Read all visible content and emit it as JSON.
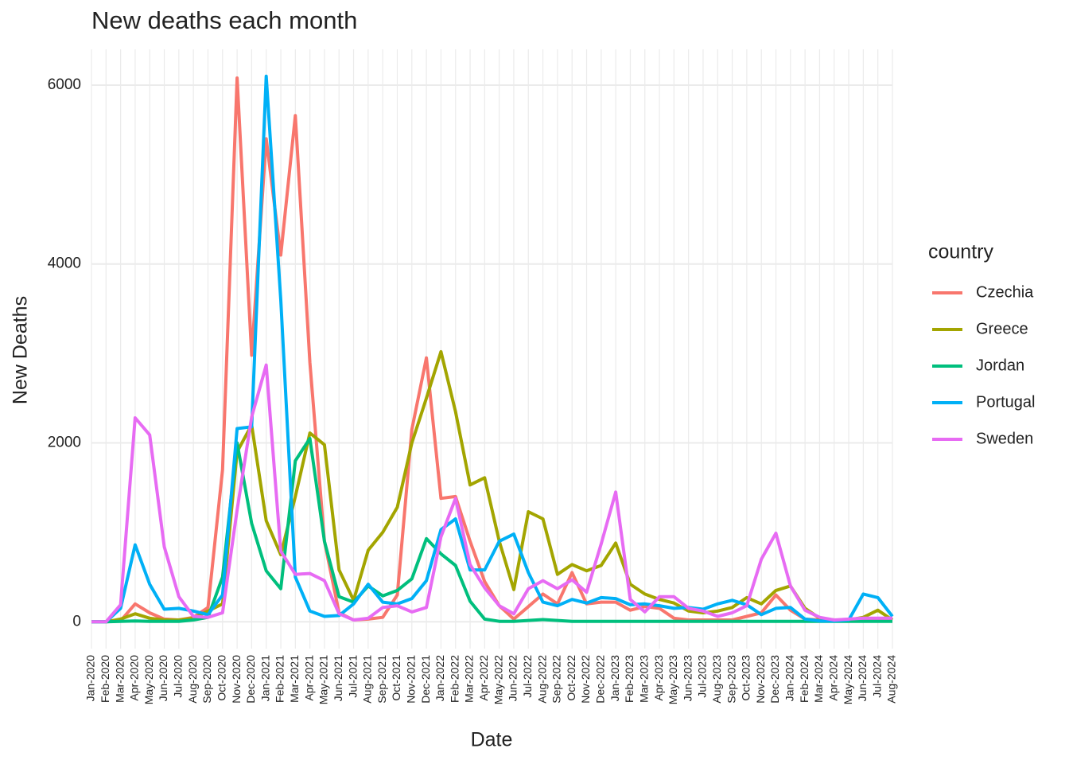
{
  "chart_data": {
    "type": "line",
    "title": "New deaths each month",
    "x_label": "Date",
    "y_label": "New Deaths",
    "legend_title": "country",
    "legend": "right",
    "grid": true,
    "categories": [
      "Jan-2020",
      "Feb-2020",
      "Mar-2020",
      "Apr-2020",
      "May-2020",
      "Jun-2020",
      "Jul-2020",
      "Aug-2020",
      "Sep-2020",
      "Oct-2020",
      "Nov-2020",
      "Dec-2020",
      "Jan-2021",
      "Feb-2021",
      "Mar-2021",
      "Apr-2021",
      "May-2021",
      "Jun-2021",
      "Jul-2021",
      "Aug-2021",
      "Sep-2021",
      "Oct-2021",
      "Nov-2021",
      "Dec-2021",
      "Jan-2022",
      "Feb-2022",
      "Mar-2022",
      "Apr-2022",
      "May-2022",
      "Jun-2022",
      "Jul-2022",
      "Aug-2022",
      "Sep-2022",
      "Oct-2022",
      "Nov-2022",
      "Dec-2022",
      "Jan-2023",
      "Feb-2023",
      "Mar-2023",
      "Apr-2023",
      "May-2023",
      "Jun-2023",
      "Jul-2023",
      "Aug-2023",
      "Sep-2023",
      "Oct-2023",
      "Nov-2023",
      "Dec-2023",
      "Jan-2024",
      "Feb-2024",
      "Mar-2024",
      "Apr-2024",
      "May-2024",
      "Jun-2024",
      "Jul-2024",
      "Aug-2024"
    ],
    "ylim": [
      -300,
      6400
    ],
    "yticks": [
      0,
      2000,
      4000,
      6000
    ],
    "series": [
      {
        "name": "Czechia",
        "color": "#F8766D",
        "values": [
          0,
          0,
          10,
          200,
          100,
          30,
          20,
          50,
          160,
          1700,
          6080,
          2980,
          5400,
          4100,
          5660,
          2900,
          900,
          100,
          20,
          30,
          50,
          300,
          2150,
          2950,
          1380,
          1400,
          900,
          450,
          180,
          30,
          170,
          310,
          200,
          550,
          200,
          220,
          220,
          130,
          170,
          150,
          40,
          20,
          20,
          20,
          20,
          60,
          100,
          300,
          130,
          30,
          20,
          10,
          10,
          10,
          20,
          20
        ]
      },
      {
        "name": "Greece",
        "color": "#A3A500",
        "values": [
          0,
          0,
          30,
          90,
          40,
          20,
          20,
          40,
          120,
          200,
          1900,
          2200,
          1130,
          750,
          1400,
          2110,
          1980,
          580,
          240,
          800,
          1000,
          1280,
          2000,
          2500,
          3020,
          2350,
          1530,
          1610,
          900,
          360,
          1230,
          1150,
          530,
          640,
          570,
          630,
          880,
          420,
          310,
          250,
          210,
          120,
          100,
          120,
          160,
          270,
          200,
          350,
          400,
          150,
          40,
          20,
          20,
          50,
          130,
          20
        ]
      },
      {
        "name": "Jordan",
        "color": "#00BF7D",
        "values": [
          0,
          0,
          5,
          10,
          5,
          5,
          5,
          20,
          50,
          500,
          2000,
          1100,
          570,
          370,
          1800,
          2050,
          900,
          280,
          220,
          400,
          290,
          350,
          480,
          930,
          760,
          630,
          230,
          30,
          5,
          5,
          15,
          25,
          15,
          5,
          5,
          5,
          5,
          5,
          5,
          5,
          5,
          5,
          5,
          5,
          5,
          5,
          5,
          5,
          5,
          5,
          5,
          5,
          5,
          5,
          5,
          5
        ]
      },
      {
        "name": "Portugal",
        "color": "#00B0F6",
        "values": [
          0,
          0,
          150,
          860,
          420,
          140,
          150,
          120,
          80,
          300,
          2160,
          2180,
          6100,
          3600,
          500,
          120,
          60,
          70,
          200,
          420,
          220,
          200,
          260,
          460,
          1030,
          1150,
          580,
          580,
          900,
          980,
          550,
          220,
          180,
          250,
          210,
          270,
          260,
          190,
          200,
          180,
          150,
          160,
          140,
          200,
          240,
          190,
          80,
          150,
          160,
          30,
          10,
          10,
          20,
          310,
          270,
          60
        ]
      },
      {
        "name": "Sweden",
        "color": "#E76BF3",
        "values": [
          0,
          0,
          190,
          2280,
          2090,
          840,
          280,
          60,
          50,
          100,
          1250,
          2290,
          2870,
          790,
          530,
          540,
          460,
          90,
          20,
          40,
          160,
          180,
          110,
          160,
          950,
          1380,
          640,
          380,
          180,
          90,
          370,
          460,
          370,
          470,
          330,
          870,
          1450,
          250,
          110,
          280,
          280,
          150,
          120,
          60,
          100,
          180,
          700,
          990,
          400,
          130,
          50,
          20,
          30,
          40,
          40,
          40
        ]
      }
    ]
  }
}
